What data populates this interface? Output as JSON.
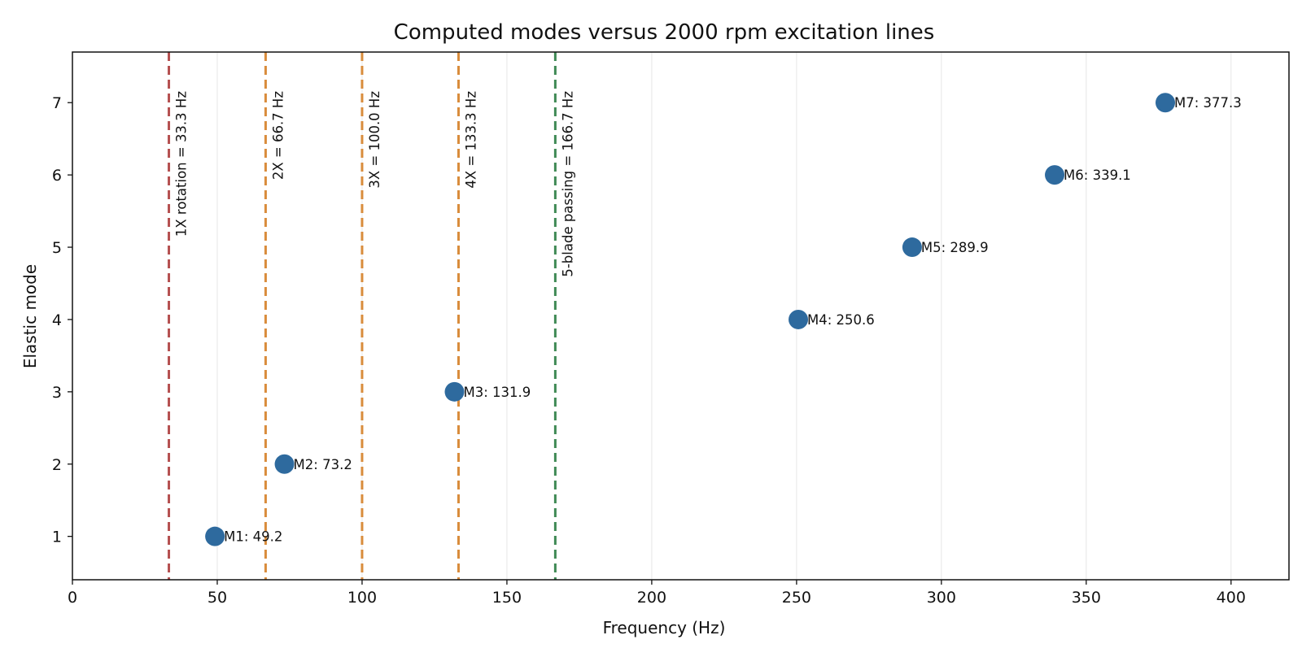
{
  "colors": {
    "point": "#2e6a9e",
    "rotation_line": "#b55050",
    "harmonic_line": "#d98c3c",
    "blade_line": "#3f8a55",
    "grid": "#e6e6e6",
    "axis": "#111111"
  },
  "chart_data": {
    "type": "scatter",
    "title": "Computed modes versus 2000 rpm excitation lines",
    "xlabel": "Frequency (Hz)",
    "ylabel": "Elastic mode",
    "xlim": [
      0,
      420
    ],
    "ylim": [
      0.4,
      7.7
    ],
    "xticks": [
      0,
      50,
      100,
      150,
      200,
      250,
      300,
      350,
      400
    ],
    "yticks": [
      1,
      2,
      3,
      4,
      5,
      6,
      7
    ],
    "grid": "vertical",
    "points": [
      {
        "x": 49.2,
        "y": 1,
        "label": "M1: 49.2"
      },
      {
        "x": 73.2,
        "y": 2,
        "label": "M2: 73.2"
      },
      {
        "x": 131.9,
        "y": 3,
        "label": "M3: 131.9"
      },
      {
        "x": 250.6,
        "y": 4,
        "label": "M4: 250.6"
      },
      {
        "x": 289.9,
        "y": 5,
        "label": "M5: 289.9"
      },
      {
        "x": 339.1,
        "y": 6,
        "label": "M6: 339.1"
      },
      {
        "x": 377.3,
        "y": 7,
        "label": "M7: 377.3"
      }
    ],
    "excitation_lines": [
      {
        "x": 33.3,
        "label": "1X rotation = 33.3 Hz",
        "kind": "rotation"
      },
      {
        "x": 66.7,
        "label": "2X = 66.7 Hz",
        "kind": "harmonic"
      },
      {
        "x": 100.0,
        "label": "3X = 100.0 Hz",
        "kind": "harmonic"
      },
      {
        "x": 133.3,
        "label": "4X = 133.3 Hz",
        "kind": "harmonic"
      },
      {
        "x": 166.7,
        "label": "5-blade passing = 166.7 Hz",
        "kind": "blade"
      }
    ]
  }
}
